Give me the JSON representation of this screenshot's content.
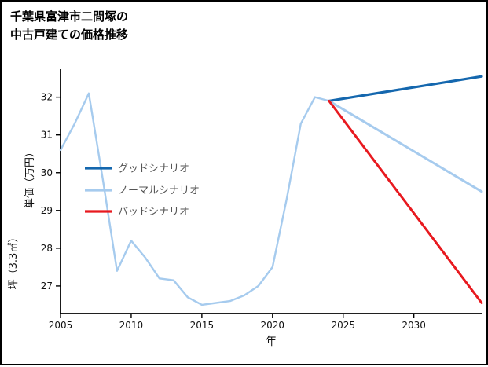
{
  "title": {
    "line1": "千葉県富津市二間塚の",
    "line2": "中古戸建ての価格推移"
  },
  "chart_data": {
    "type": "line",
    "title": "千葉県富津市二間塚の中古戸建ての価格推移",
    "xlabel": "年",
    "ylabel": "坪（3.3㎡）単価（万円）",
    "ylabel_lines": [
      "坪（3.3㎡）",
      "単価（万円）"
    ],
    "xlim": [
      2005,
      2034.8
    ],
    "ylim": [
      26.27,
      32.7
    ],
    "xticks": [
      2005,
      2010,
      2015,
      2020,
      2025,
      2030
    ],
    "yticks": [
      27,
      28,
      29,
      30,
      31,
      32
    ],
    "grid": false,
    "legend_position": "center-left-inside",
    "colors": {
      "good": "#1467ae",
      "normal": "#a6cbee",
      "bad": "#e8191f",
      "axis": "#000000",
      "tick_text": "#111111",
      "legend_text": "#555555"
    },
    "legend": [
      {
        "key": "good",
        "label": "グッドシナリオ"
      },
      {
        "key": "normal",
        "label": "ノーマルシナリオ"
      },
      {
        "key": "bad",
        "label": "バッドシナリオ"
      }
    ],
    "series": [
      {
        "id": "history",
        "name": "price-history",
        "key": "normal",
        "width": 2.4,
        "x": [
          2005,
          2006,
          2007,
          2008,
          2009,
          2010,
          2011,
          2012,
          2013,
          2014,
          2015,
          2016,
          2017,
          2018,
          2019,
          2020,
          2021,
          2022,
          2023,
          2024
        ],
        "y": [
          30.6,
          31.3,
          32.1,
          29.8,
          27.4,
          28.2,
          27.75,
          27.2,
          27.15,
          26.7,
          26.5,
          26.55,
          26.6,
          26.75,
          27.0,
          27.5,
          29.3,
          31.3,
          32.0,
          31.9
        ]
      },
      {
        "id": "good-scenario",
        "name": "グッドシナリオ",
        "key": "good",
        "width": 3.2,
        "x": [
          2024,
          2034.8
        ],
        "y": [
          31.9,
          32.55
        ]
      },
      {
        "id": "normal-scenario",
        "name": "ノーマルシナリオ",
        "key": "normal",
        "width": 3.0,
        "x": [
          2024,
          2034.8
        ],
        "y": [
          31.9,
          29.5
        ]
      },
      {
        "id": "bad-scenario",
        "name": "バッドシナリオ",
        "key": "bad",
        "width": 3.0,
        "x": [
          2024,
          2034.8
        ],
        "y": [
          31.9,
          26.55
        ]
      }
    ]
  }
}
